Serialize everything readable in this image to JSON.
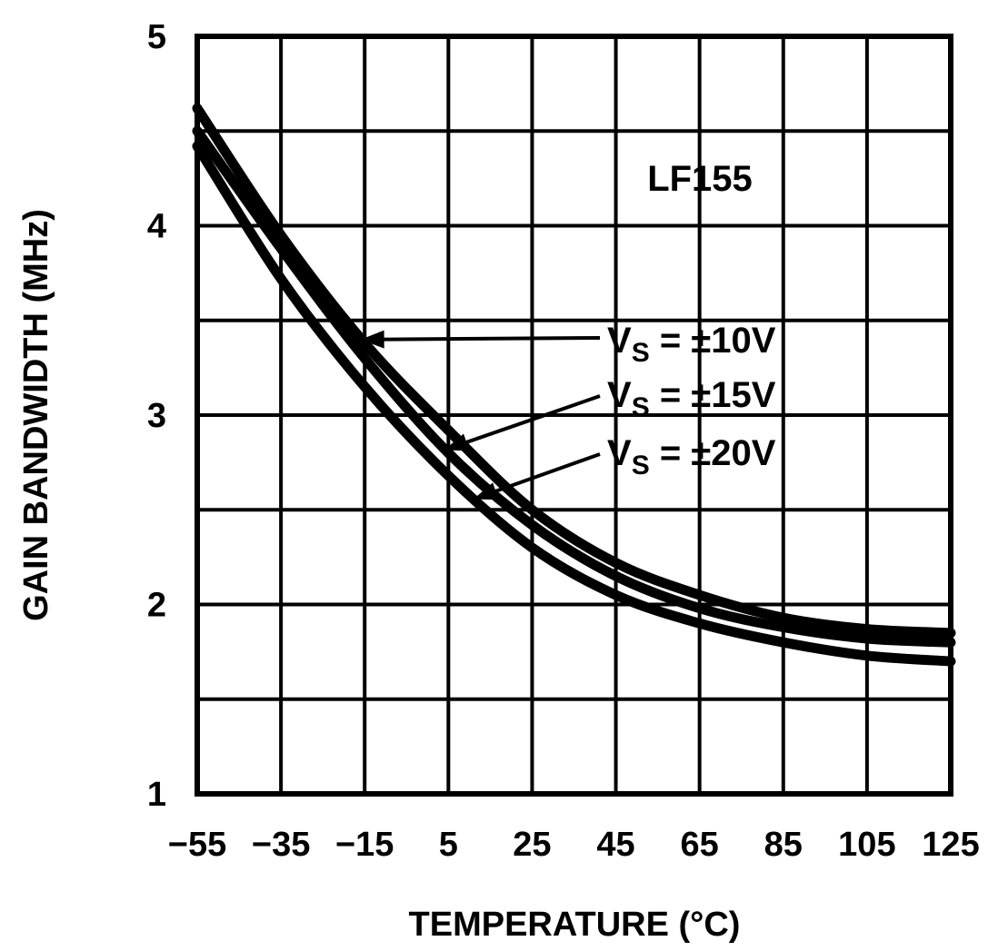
{
  "chart_data": {
    "type": "line",
    "title": "",
    "xlabel": "TEMPERATURE (°C)",
    "ylabel": "GAIN BANDWIDTH (MHz)",
    "xlim": [
      -55,
      125
    ],
    "ylim": [
      1,
      5
    ],
    "grid": true,
    "x_ticks": [
      -55,
      -35,
      -15,
      5,
      25,
      45,
      65,
      85,
      105,
      125
    ],
    "x_tick_labels": [
      "−55",
      "−35",
      "−15",
      "5",
      "25",
      "45",
      "65",
      "85",
      "105",
      "125"
    ],
    "y_ticks": [
      1,
      2,
      3,
      4,
      5
    ],
    "y_tick_labels": [
      "1",
      "2",
      "3",
      "4",
      "5"
    ],
    "x": [
      -55,
      -35,
      -15,
      5,
      25,
      45,
      65,
      85,
      105,
      125
    ],
    "series": [
      {
        "name": "V_S = ±10V",
        "values": [
          4.62,
          3.95,
          3.38,
          2.92,
          2.5,
          2.22,
          2.05,
          1.93,
          1.87,
          1.85
        ]
      },
      {
        "name": "V_S = ±15V",
        "values": [
          4.5,
          3.88,
          3.3,
          2.8,
          2.42,
          2.15,
          1.98,
          1.88,
          1.82,
          1.8
        ]
      },
      {
        "name": "V_S = ±20V",
        "values": [
          4.42,
          3.72,
          3.15,
          2.68,
          2.3,
          2.05,
          1.9,
          1.8,
          1.73,
          1.7
        ]
      }
    ],
    "annotations": {
      "device": "LF155",
      "labels": [
        {
          "prefix": "V",
          "sub": "S",
          "suffix": " = ±10V"
        },
        {
          "prefix": "V",
          "sub": "S",
          "suffix": " = ±15V"
        },
        {
          "prefix": "V",
          "sub": "S",
          "suffix": " = ±20V"
        }
      ]
    }
  }
}
